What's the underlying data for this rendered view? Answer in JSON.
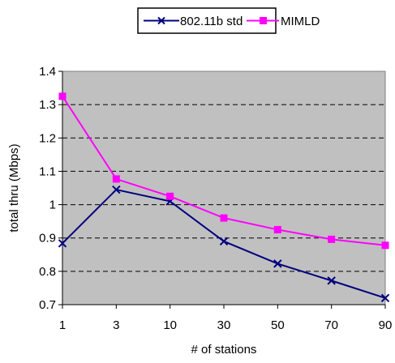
{
  "chart_data": {
    "type": "line",
    "title": "",
    "xlabel": "# of stations",
    "ylabel": "total thru (Mbps)",
    "categories": [
      "1",
      "3",
      "10",
      "30",
      "50",
      "70",
      "90"
    ],
    "ylim": [
      0.7,
      1.4
    ],
    "yticks": [
      "0.7",
      "0.8",
      "0.9",
      "1",
      "1.1",
      "1.2",
      "1.3",
      "1.4"
    ],
    "grid": "horizontal dashed",
    "legend_position": "top",
    "plot_background": "#c0c0c0",
    "series": [
      {
        "name": "802.11b std",
        "color": "#000080",
        "marker": "x",
        "values": [
          0.884,
          1.045,
          1.01,
          0.89,
          0.823,
          0.772,
          0.72
        ]
      },
      {
        "name": "MIMLD",
        "color": "#ff00ff",
        "marker": "square",
        "values": [
          1.325,
          1.077,
          1.025,
          0.96,
          0.925,
          0.896,
          0.878
        ]
      }
    ]
  }
}
